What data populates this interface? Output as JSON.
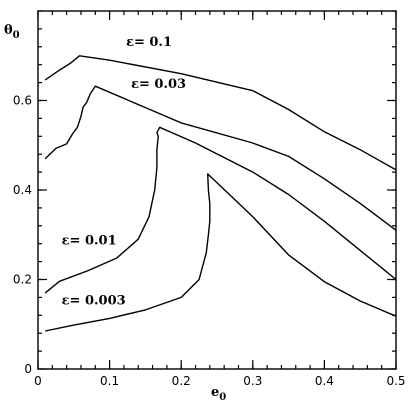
{
  "chart_data": {
    "type": "line",
    "xlabel": "e",
    "xlabel_sub": "0",
    "ylabel": "θ",
    "ylabel_sub": "0",
    "xlim": [
      0,
      0.5
    ],
    "ylim": [
      0,
      0.8
    ],
    "x_major_ticks": [
      0,
      0.1,
      0.2,
      0.3,
      0.4,
      0.5
    ],
    "x_tick_labels": [
      "0",
      "0.1",
      "0.2",
      "0.3",
      "0.4",
      "0.5"
    ],
    "y_major_ticks": [
      0,
      0.2,
      0.4,
      0.6
    ],
    "y_tick_labels": [
      "0",
      "0.2",
      "0.4",
      "0.6"
    ],
    "x_minor_step": 0.02,
    "y_minor_step": 0.04,
    "grid": false,
    "series": [
      {
        "name": "ε= 0.1",
        "label": {
          "x": 0.123,
          "y": 0.722
        },
        "points": [
          [
            0.01,
            0.646
          ],
          [
            0.03,
            0.668
          ],
          [
            0.045,
            0.683
          ],
          [
            0.058,
            0.7
          ],
          [
            0.1,
            0.69
          ],
          [
            0.2,
            0.66
          ],
          [
            0.3,
            0.622
          ],
          [
            0.35,
            0.58
          ],
          [
            0.4,
            0.53
          ],
          [
            0.45,
            0.49
          ],
          [
            0.5,
            0.445
          ]
        ]
      },
      {
        "name": "ε= 0.03",
        "label": {
          "x": 0.13,
          "y": 0.628
        },
        "points": [
          [
            0.01,
            0.47
          ],
          [
            0.025,
            0.493
          ],
          [
            0.04,
            0.503
          ],
          [
            0.048,
            0.525
          ],
          [
            0.055,
            0.54
          ],
          [
            0.06,
            0.565
          ],
          [
            0.063,
            0.585
          ],
          [
            0.068,
            0.596
          ],
          [
            0.073,
            0.615
          ],
          [
            0.08,
            0.632
          ],
          [
            0.2,
            0.55
          ],
          [
            0.3,
            0.505
          ],
          [
            0.35,
            0.475
          ],
          [
            0.4,
            0.425
          ],
          [
            0.45,
            0.37
          ],
          [
            0.5,
            0.31
          ]
        ]
      },
      {
        "name": "ε= 0.01",
        "label": {
          "x": 0.033,
          "y": 0.278
        },
        "points": [
          [
            0.01,
            0.17
          ],
          [
            0.03,
            0.196
          ],
          [
            0.07,
            0.22
          ],
          [
            0.11,
            0.248
          ],
          [
            0.14,
            0.29
          ],
          [
            0.155,
            0.34
          ],
          [
            0.163,
            0.4
          ],
          [
            0.166,
            0.45
          ],
          [
            0.166,
            0.49
          ],
          [
            0.168,
            0.52
          ],
          [
            0.166,
            0.528
          ],
          [
            0.17,
            0.54
          ],
          [
            0.22,
            0.505
          ],
          [
            0.3,
            0.44
          ],
          [
            0.35,
            0.39
          ],
          [
            0.4,
            0.33
          ],
          [
            0.45,
            0.265
          ],
          [
            0.5,
            0.2
          ]
        ]
      },
      {
        "name": "ε= 0.003",
        "label": {
          "x": 0.033,
          "y": 0.144
        },
        "points": [
          [
            0.01,
            0.085
          ],
          [
            0.05,
            0.098
          ],
          [
            0.1,
            0.113
          ],
          [
            0.15,
            0.132
          ],
          [
            0.2,
            0.16
          ],
          [
            0.225,
            0.2
          ],
          [
            0.235,
            0.26
          ],
          [
            0.238,
            0.3
          ],
          [
            0.24,
            0.33
          ],
          [
            0.24,
            0.37
          ],
          [
            0.238,
            0.4
          ],
          [
            0.237,
            0.436
          ],
          [
            0.3,
            0.34
          ],
          [
            0.35,
            0.255
          ],
          [
            0.4,
            0.195
          ],
          [
            0.45,
            0.152
          ],
          [
            0.5,
            0.118
          ]
        ]
      }
    ]
  }
}
